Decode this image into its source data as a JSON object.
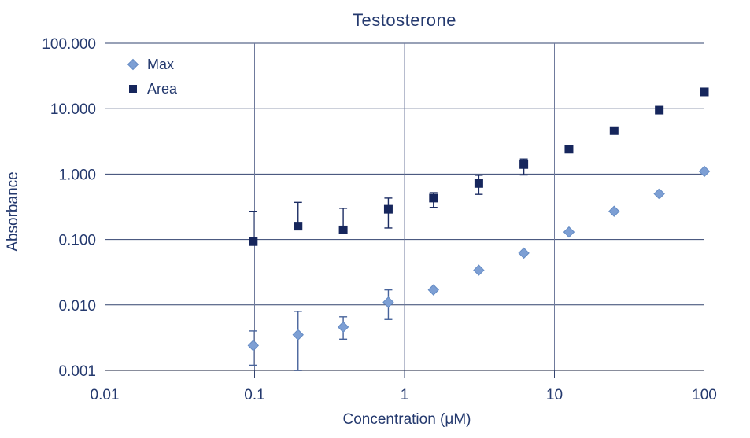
{
  "colors": {
    "text_navy": "#24396e",
    "grid_horizontal": "#32436f",
    "grid_vertical": "#6f7a9c",
    "axis_line": "#898d9c",
    "max_marker_fill": "#7d9fd4",
    "max_marker_stroke": "#648bc4",
    "max_errorbar": "#47639b",
    "area_marker_fill": "#16265c",
    "area_errorbar": "#1b2c63",
    "background": "#ffffff"
  },
  "chart_data": {
    "type": "scatter",
    "title": "Testosterone",
    "xlabel": "Concentration (μM)",
    "ylabel": "Absorbance",
    "x_scale": "log",
    "y_scale": "log",
    "xlim": [
      0.01,
      100
    ],
    "ylim": [
      0.001,
      100
    ],
    "x_tick_values": [
      0.01,
      0.1,
      1,
      10,
      100
    ],
    "x_tick_labels": [
      "0.01",
      "0.1",
      "1",
      "10",
      "100"
    ],
    "y_tick_values": [
      100,
      10,
      1,
      0.1,
      0.01,
      0.001
    ],
    "y_tick_labels": [
      "100.000",
      "10.000",
      "1.000",
      "0.100",
      "0.010",
      "0.001"
    ],
    "x_gridline_values": [
      0.1,
      1,
      10
    ],
    "grid": "horizontal lines at each y decade; vertical lines at 0.1, 1, 10",
    "legend_position": "inside plot, top-left",
    "x": [
      0.098,
      0.195,
      0.39,
      0.78,
      1.56,
      3.13,
      6.25,
      12.5,
      25,
      50,
      100
    ],
    "series": [
      {
        "name": "Max",
        "marker": "diamond",
        "values": [
          0.0024,
          0.0035,
          0.0046,
          0.011,
          0.017,
          0.034,
          0.062,
          0.13,
          0.27,
          0.5,
          1.1
        ],
        "err_lo": [
          0.0012,
          0.001,
          0.003,
          0.006,
          null,
          null,
          null,
          null,
          null,
          null,
          null
        ],
        "err_hi": [
          0.004,
          0.008,
          0.0066,
          0.017,
          null,
          null,
          null,
          null,
          null,
          null,
          null
        ]
      },
      {
        "name": "Area",
        "marker": "square",
        "values": [
          0.093,
          0.16,
          0.14,
          0.29,
          0.43,
          0.72,
          1.4,
          2.4,
          4.6,
          9.5,
          18
        ],
        "err_lo": [
          null,
          null,
          null,
          0.15,
          0.31,
          0.49,
          0.97,
          null,
          null,
          null,
          null
        ],
        "err_hi": [
          0.27,
          0.37,
          0.3,
          0.43,
          0.52,
          0.96,
          1.7,
          null,
          null,
          null,
          null
        ]
      }
    ]
  }
}
